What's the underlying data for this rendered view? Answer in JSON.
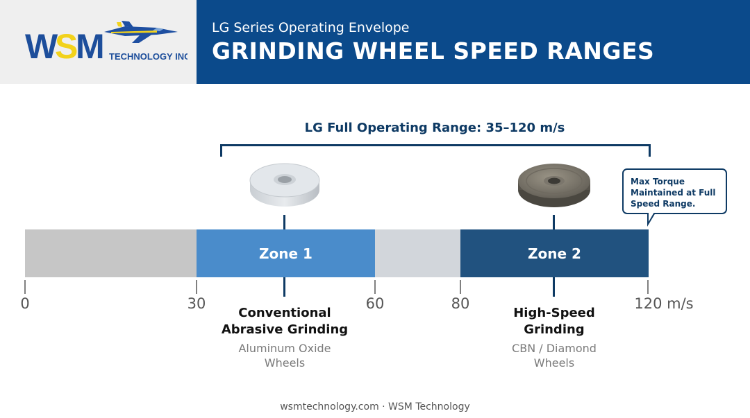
{
  "header": {
    "logo_main": "WSM",
    "logo_sub": "TECHNOLOGY INC.",
    "subtitle": "LG Series Operating Envelope",
    "title": "GRINDING WHEEL SPEED RANGES"
  },
  "range_label": "LG Full Operating Range: 35–120 m/s",
  "zones": {
    "zone1": "Zone 1",
    "zone2": "Zone 2"
  },
  "ticks": [
    "0",
    "30",
    "60",
    "80",
    "120 m/s"
  ],
  "applications": [
    {
      "title_line1": "Conventional",
      "title_line2": "Abrasive Grinding",
      "sub_line1": "Aluminum Oxide",
      "sub_line2": "Wheels"
    },
    {
      "title_line1": "High-Speed",
      "title_line2": "Grinding",
      "sub_line1": "CBN / Diamond",
      "sub_line2": "Wheels"
    }
  ],
  "callout": {
    "line1": "Max Torque",
    "line2": "Maintained at Full",
    "line3": "Speed Range."
  },
  "footer": "wsmtechnology.com · WSM Technology",
  "colors": {
    "header_blue": "#0b4a8b",
    "zone1": "#4a8ccb",
    "zone2": "#21527f",
    "inactive": "#c6c6c6",
    "gap": "#d2d6db",
    "accent_navy": "#0e3a64",
    "logo_yellow": "#f2d21b"
  },
  "icons": [
    "jet-icon",
    "aluminum-oxide-wheel-icon",
    "cbn-diamond-wheel-icon"
  ]
}
